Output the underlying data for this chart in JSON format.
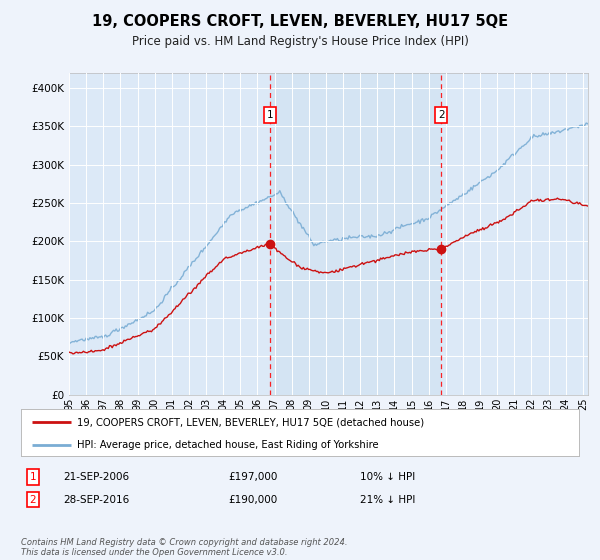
{
  "title": "19, COOPERS CROFT, LEVEN, BEVERLEY, HU17 5QE",
  "subtitle": "Price paid vs. HM Land Registry's House Price Index (HPI)",
  "background_color": "#eef3fb",
  "plot_bg_color": "#dce9f7",
  "shaded_region_color": "#e4eef8",
  "ylim": [
    0,
    420000
  ],
  "yticks": [
    0,
    50000,
    100000,
    150000,
    200000,
    250000,
    300000,
    350000,
    400000
  ],
  "ytick_labels": [
    "£0",
    "£50K",
    "£100K",
    "£150K",
    "£200K",
    "£250K",
    "£300K",
    "£350K",
    "£400K"
  ],
  "x_start_year": 1995,
  "x_end_year": 2025,
  "hpi_color": "#7aadd4",
  "property_color": "#cc1111",
  "sale1_year": 2006.72,
  "sale1_price": 197000,
  "sale1_label": "1",
  "sale1_date": "21-SEP-2006",
  "sale1_hpi_diff": "10% ↓ HPI",
  "sale2_year": 2016.74,
  "sale2_price": 190000,
  "sale2_label": "2",
  "sale2_date": "28-SEP-2016",
  "sale2_hpi_diff": "21% ↓ HPI",
  "legend_line1": "19, COOPERS CROFT, LEVEN, BEVERLEY, HU17 5QE (detached house)",
  "legend_line2": "HPI: Average price, detached house, East Riding of Yorkshire",
  "footer": "Contains HM Land Registry data © Crown copyright and database right 2024.\nThis data is licensed under the Open Government Licence v3.0."
}
